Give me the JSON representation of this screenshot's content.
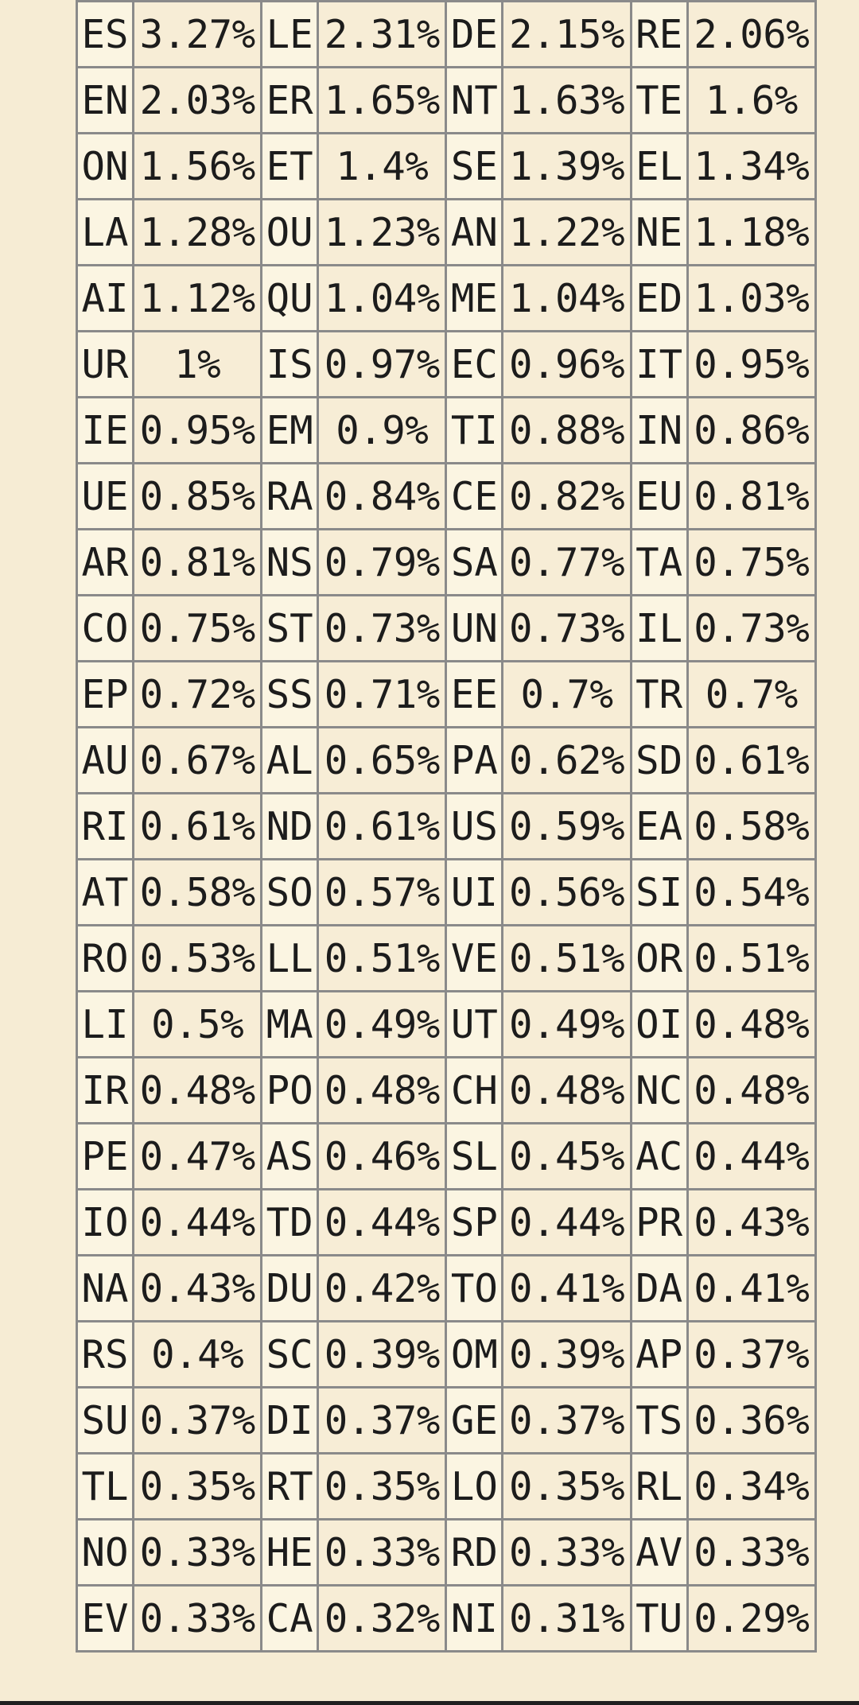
{
  "bigram_table": {
    "rows": [
      [
        [
          "ES",
          "3.27%"
        ],
        [
          "LE",
          "2.31%"
        ],
        [
          "DE",
          "2.15%"
        ],
        [
          "RE",
          "2.06%"
        ]
      ],
      [
        [
          "EN",
          "2.03%"
        ],
        [
          "ER",
          "1.65%"
        ],
        [
          "NT",
          "1.63%"
        ],
        [
          "TE",
          "1.6%"
        ]
      ],
      [
        [
          "ON",
          "1.56%"
        ],
        [
          "ET",
          "1.4%"
        ],
        [
          "SE",
          "1.39%"
        ],
        [
          "EL",
          "1.34%"
        ]
      ],
      [
        [
          "LA",
          "1.28%"
        ],
        [
          "OU",
          "1.23%"
        ],
        [
          "AN",
          "1.22%"
        ],
        [
          "NE",
          "1.18%"
        ]
      ],
      [
        [
          "AI",
          "1.12%"
        ],
        [
          "QU",
          "1.04%"
        ],
        [
          "ME",
          "1.04%"
        ],
        [
          "ED",
          "1.03%"
        ]
      ],
      [
        [
          "UR",
          "1%"
        ],
        [
          "IS",
          "0.97%"
        ],
        [
          "EC",
          "0.96%"
        ],
        [
          "IT",
          "0.95%"
        ]
      ],
      [
        [
          "IE",
          "0.95%"
        ],
        [
          "EM",
          "0.9%"
        ],
        [
          "TI",
          "0.88%"
        ],
        [
          "IN",
          "0.86%"
        ]
      ],
      [
        [
          "UE",
          "0.85%"
        ],
        [
          "RA",
          "0.84%"
        ],
        [
          "CE",
          "0.82%"
        ],
        [
          "EU",
          "0.81%"
        ]
      ],
      [
        [
          "AR",
          "0.81%"
        ],
        [
          "NS",
          "0.79%"
        ],
        [
          "SA",
          "0.77%"
        ],
        [
          "TA",
          "0.75%"
        ]
      ],
      [
        [
          "CO",
          "0.75%"
        ],
        [
          "ST",
          "0.73%"
        ],
        [
          "UN",
          "0.73%"
        ],
        [
          "IL",
          "0.73%"
        ]
      ],
      [
        [
          "EP",
          "0.72%"
        ],
        [
          "SS",
          "0.71%"
        ],
        [
          "EE",
          "0.7%"
        ],
        [
          "TR",
          "0.7%"
        ]
      ],
      [
        [
          "AU",
          "0.67%"
        ],
        [
          "AL",
          "0.65%"
        ],
        [
          "PA",
          "0.62%"
        ],
        [
          "SD",
          "0.61%"
        ]
      ],
      [
        [
          "RI",
          "0.61%"
        ],
        [
          "ND",
          "0.61%"
        ],
        [
          "US",
          "0.59%"
        ],
        [
          "EA",
          "0.58%"
        ]
      ],
      [
        [
          "AT",
          "0.58%"
        ],
        [
          "SO",
          "0.57%"
        ],
        [
          "UI",
          "0.56%"
        ],
        [
          "SI",
          "0.54%"
        ]
      ],
      [
        [
          "RO",
          "0.53%"
        ],
        [
          "LL",
          "0.51%"
        ],
        [
          "VE",
          "0.51%"
        ],
        [
          "OR",
          "0.51%"
        ]
      ],
      [
        [
          "LI",
          "0.5%"
        ],
        [
          "MA",
          "0.49%"
        ],
        [
          "UT",
          "0.49%"
        ],
        [
          "OI",
          "0.48%"
        ]
      ],
      [
        [
          "IR",
          "0.48%"
        ],
        [
          "PO",
          "0.48%"
        ],
        [
          "CH",
          "0.48%"
        ],
        [
          "NC",
          "0.48%"
        ]
      ],
      [
        [
          "PE",
          "0.47%"
        ],
        [
          "AS",
          "0.46%"
        ],
        [
          "SL",
          "0.45%"
        ],
        [
          "AC",
          "0.44%"
        ]
      ],
      [
        [
          "IO",
          "0.44%"
        ],
        [
          "TD",
          "0.44%"
        ],
        [
          "SP",
          "0.44%"
        ],
        [
          "PR",
          "0.43%"
        ]
      ],
      [
        [
          "NA",
          "0.43%"
        ],
        [
          "DU",
          "0.42%"
        ],
        [
          "TO",
          "0.41%"
        ],
        [
          "DA",
          "0.41%"
        ]
      ],
      [
        [
          "RS",
          "0.4%"
        ],
        [
          "SC",
          "0.39%"
        ],
        [
          "OM",
          "0.39%"
        ],
        [
          "AP",
          "0.37%"
        ]
      ],
      [
        [
          "SU",
          "0.37%"
        ],
        [
          "DI",
          "0.37%"
        ],
        [
          "GE",
          "0.37%"
        ],
        [
          "TS",
          "0.36%"
        ]
      ],
      [
        [
          "TL",
          "0.35%"
        ],
        [
          "RT",
          "0.35%"
        ],
        [
          "LO",
          "0.35%"
        ],
        [
          "RL",
          "0.34%"
        ]
      ],
      [
        [
          "NO",
          "0.33%"
        ],
        [
          "HE",
          "0.33%"
        ],
        [
          "RD",
          "0.33%"
        ],
        [
          "AV",
          "0.33%"
        ]
      ],
      [
        [
          "EV",
          "0.33%"
        ],
        [
          "CA",
          "0.32%"
        ],
        [
          "NI",
          "0.31%"
        ],
        [
          "TU",
          "0.29%"
        ]
      ]
    ]
  }
}
